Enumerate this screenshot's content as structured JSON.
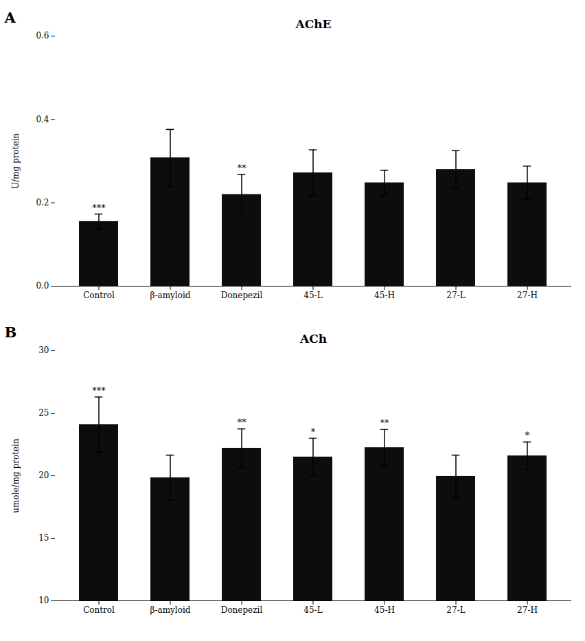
{
  "chart_data": [
    {
      "type": "bar",
      "title": "AChE",
      "ylabel": "U/mg protein",
      "label": "A",
      "categories": [
        "Control",
        "β-amyloid",
        "Donepezil",
        "45-L",
        "45-H",
        "27-L",
        "27-H"
      ],
      "values": [
        0.155,
        0.308,
        0.22,
        0.272,
        0.248,
        0.28,
        0.248
      ],
      "errors": [
        0.018,
        0.068,
        0.048,
        0.055,
        0.03,
        0.045,
        0.04
      ],
      "significance": [
        "***",
        null,
        "**",
        null,
        null,
        null,
        null
      ],
      "color": "#0d0d0d",
      "ylim": [
        0.0,
        0.6
      ],
      "yticks": [
        {
          "value": 0,
          "label": "0.0"
        },
        0.2,
        0.4,
        0.6
      ],
      "grid": false
    },
    {
      "type": "bar",
      "title": "ACh",
      "ylabel": "umole/mg protein",
      "label": "B",
      "categories": [
        "Control",
        "β-amyloid",
        "Donepezil",
        "45-L",
        "45-H",
        "27-L",
        "27-H"
      ],
      "values": [
        24.1,
        19.85,
        22.2,
        21.5,
        22.25,
        19.95,
        21.6
      ],
      "errors": [
        2.2,
        1.8,
        1.55,
        1.5,
        1.45,
        1.7,
        1.1
      ],
      "significance": [
        "***",
        null,
        "**",
        "*",
        "**",
        null,
        "*"
      ],
      "color": "#0d0d0d",
      "ylim": [
        10,
        30
      ],
      "yticks": [
        10,
        15,
        20,
        25,
        30
      ],
      "grid": false
    }
  ]
}
